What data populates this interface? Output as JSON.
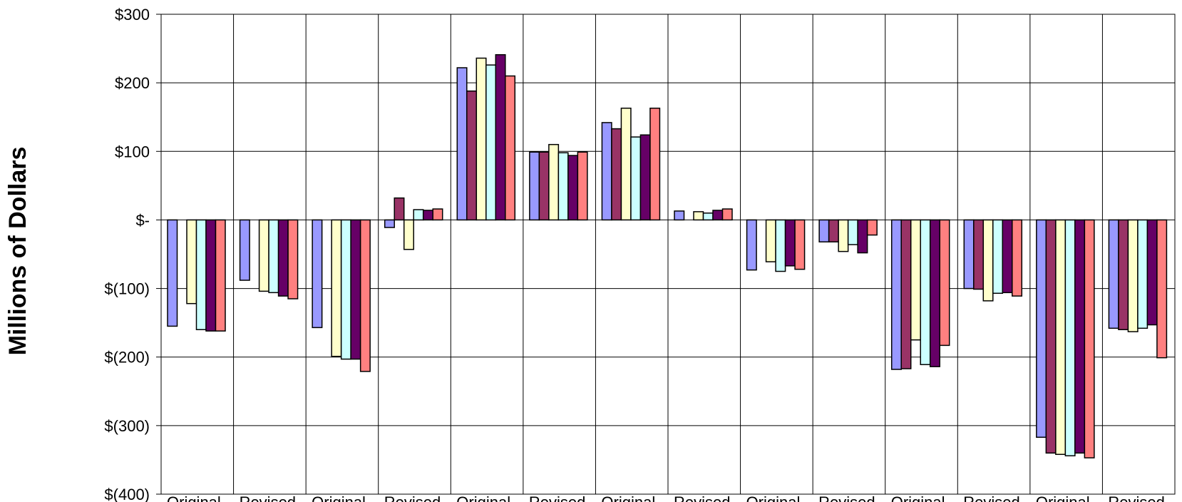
{
  "chart_data": {
    "type": "bar",
    "ylabel": "Millions of Dollars",
    "ylim": [
      -400,
      300
    ],
    "yticks": [
      300,
      200,
      100,
      0,
      -100,
      -200,
      -300,
      -400
    ],
    "ytick_labels": [
      "$300",
      "$200",
      "$100",
      "$-",
      "$(100)",
      "$(200)",
      "$(300)",
      "$(400)"
    ],
    "categories": [
      "Original",
      "Revised",
      "Original",
      "Revised",
      "Original",
      "Revised",
      "Original",
      "Revised",
      "Original",
      "Revised",
      "Original",
      "Revised",
      "Original",
      "Revised"
    ],
    "grid": true,
    "series": [
      {
        "color": "#9999FF",
        "values": [
          -155,
          -88,
          -157,
          -11,
          222,
          99,
          142,
          13,
          -73,
          -32,
          -218,
          -100,
          -317,
          -158
        ]
      },
      {
        "color": "#993366",
        "values": [
          0,
          0,
          0,
          32,
          188,
          99,
          133,
          0,
          0,
          -32,
          -217,
          -101,
          -340,
          -160
        ]
      },
      {
        "color": "#FFFFCC",
        "values": [
          -122,
          -104,
          -199,
          -43,
          236,
          110,
          163,
          12,
          -61,
          -46,
          -175,
          -118,
          -342,
          -163
        ]
      },
      {
        "color": "#CCFFFF",
        "values": [
          -160,
          -106,
          -203,
          15,
          226,
          98,
          121,
          10,
          -75,
          -36,
          -211,
          -107,
          -344,
          -158
        ]
      },
      {
        "color": "#660066",
        "values": [
          -162,
          -111,
          -203,
          14,
          241,
          94,
          124,
          14,
          -67,
          -48,
          -214,
          -106,
          -340,
          -153
        ]
      },
      {
        "color": "#FF8080",
        "values": [
          -162,
          -115,
          -221,
          16,
          210,
          99,
          163,
          16,
          -72,
          -22,
          -183,
          -111,
          -347,
          -201
        ]
      }
    ]
  }
}
